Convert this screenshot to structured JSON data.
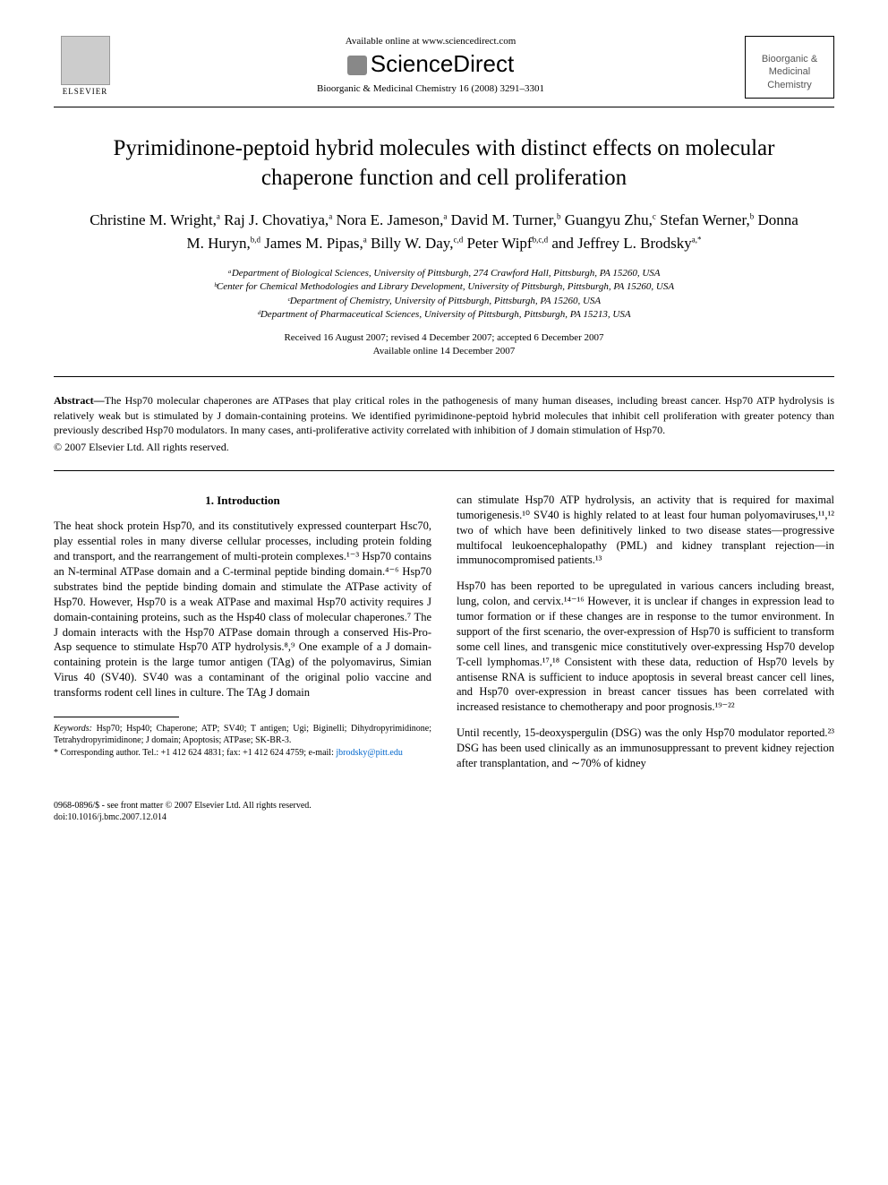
{
  "header": {
    "publisher": "ELSEVIER",
    "available_online": "Available online at www.sciencedirect.com",
    "sciencedirect": "ScienceDirect",
    "citation": "Bioorganic & Medicinal Chemistry 16 (2008) 3291–3301",
    "journal_box_line1": "Bioorganic &",
    "journal_box_line2": "Medicinal",
    "journal_box_line3": "Chemistry"
  },
  "article": {
    "title": "Pyrimidinone-peptoid hybrid molecules with distinct effects on molecular chaperone function and cell proliferation",
    "authors_html": "Christine M. Wright,<sup>a</sup> Raj J. Chovatiya,<sup>a</sup> Nora E. Jameson,<sup>a</sup> David M. Turner,<sup>b</sup> Guangyu Zhu,<sup>c</sup> Stefan Werner,<sup>b</sup> Donna M. Huryn,<sup>b,d</sup> James M. Pipas,<sup>a</sup> Billy W. Day,<sup>c,d</sup> Peter Wipf<sup>b,c,d</sup> and Jeffrey L. Brodsky<sup>a,*</sup>",
    "affiliations": [
      "ᵃDepartment of Biological Sciences, University of Pittsburgh, 274 Crawford Hall, Pittsburgh, PA 15260, USA",
      "ᵇCenter for Chemical Methodologies and Library Development, University of Pittsburgh, Pittsburgh, PA 15260, USA",
      "ᶜDepartment of Chemistry, University of Pittsburgh, Pittsburgh, PA 15260, USA",
      "ᵈDepartment of Pharmaceutical Sciences, University of Pittsburgh, Pittsburgh, PA 15213, USA"
    ],
    "dates_line1": "Received 16 August 2007; revised 4 December 2007; accepted 6 December 2007",
    "dates_line2": "Available online 14 December 2007"
  },
  "abstract": {
    "label": "Abstract—",
    "text": "The Hsp70 molecular chaperones are ATPases that play critical roles in the pathogenesis of many human diseases, including breast cancer. Hsp70 ATP hydrolysis is relatively weak but is stimulated by J domain-containing proteins. We identified pyrimidinone-peptoid hybrid molecules that inhibit cell proliferation with greater potency than previously described Hsp70 modulators. In many cases, anti-proliferative activity correlated with inhibition of J domain stimulation of Hsp70.",
    "copyright": "© 2007 Elsevier Ltd. All rights reserved."
  },
  "body": {
    "section_heading": "1. Introduction",
    "left_p1": "The heat shock protein Hsp70, and its constitutively expressed counterpart Hsc70, play essential roles in many diverse cellular processes, including protein folding and transport, and the rearrangement of multi-protein complexes.¹⁻³ Hsp70 contains an N-terminal ATPase domain and a C-terminal peptide binding domain.⁴⁻⁶ Hsp70 substrates bind the peptide binding domain and stimulate the ATPase activity of Hsp70. However, Hsp70 is a weak ATPase and maximal Hsp70 activity requires J domain-containing proteins, such as the Hsp40 class of molecular chaperones.⁷ The J domain interacts with the Hsp70 ATPase domain through a conserved His-Pro-Asp sequence to stimulate Hsp70 ATP hydrolysis.⁸,⁹ One example of a J domain-containing protein is the large tumor antigen (TAg) of the polyomavirus, Simian Virus 40 (SV40). SV40 was a contaminant of the original polio vaccine and transforms rodent cell lines in culture. The TAg J domain",
    "right_p1": "can stimulate Hsp70 ATP hydrolysis, an activity that is required for maximal tumorigenesis.¹⁰ SV40 is highly related to at least four human polyomaviruses,¹¹,¹² two of which have been definitively linked to two disease states—progressive multifocal leukoencephalopathy (PML) and kidney transplant rejection—in immunocompromised patients.¹³",
    "right_p2": "Hsp70 has been reported to be upregulated in various cancers including breast, lung, colon, and cervix.¹⁴⁻¹⁶ However, it is unclear if changes in expression lead to tumor formation or if these changes are in response to the tumor environment. In support of the first scenario, the over-expression of Hsp70 is sufficient to transform some cell lines, and transgenic mice constitutively over-expressing Hsp70 develop T-cell lymphomas.¹⁷,¹⁸ Consistent with these data, reduction of Hsp70 levels by antisense RNA is sufficient to induce apoptosis in several breast cancer cell lines, and Hsp70 over-expression in breast cancer tissues has been correlated with increased resistance to chemotherapy and poor prognosis.¹⁹⁻²²",
    "right_p3": "Until recently, 15-deoxyspergulin (DSG) was the only Hsp70 modulator reported.²³ DSG has been used clinically as an immunosuppressant to prevent kidney rejection after transplantation, and ∼70% of kidney"
  },
  "footnotes": {
    "keywords_label": "Keywords:",
    "keywords": " Hsp70; Hsp40; Chaperone; ATP; SV40; T antigen; Ugi; Biginelli; Dihydropyrimidinone; Tetrahydropyrimidinone; J domain; Apoptosis; ATPase; SK-BR-3.",
    "corresponding": "* Corresponding author. Tel.: +1 412 624 4831; fax: +1 412 624 4759; e-mail: ",
    "email": "jbrodsky@pitt.edu"
  },
  "footer": {
    "line1": "0968-0896/$ - see front matter © 2007 Elsevier Ltd. All rights reserved.",
    "line2": "doi:10.1016/j.bmc.2007.12.014"
  }
}
